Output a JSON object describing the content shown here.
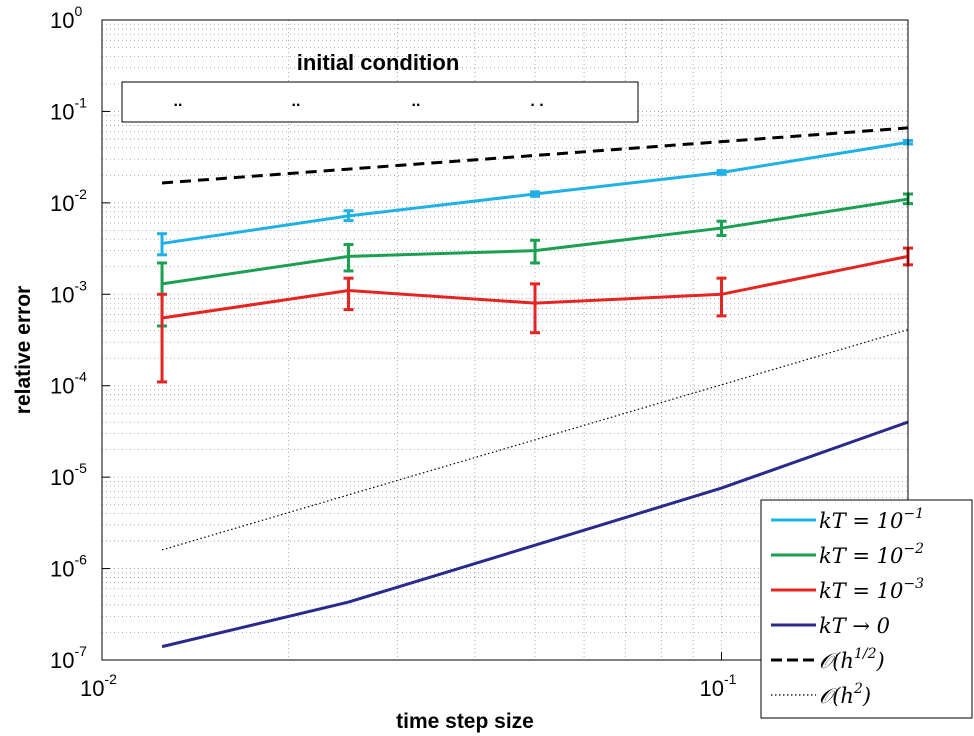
{
  "chart_data": {
    "type": "line",
    "xlabel": "time step size",
    "ylabel": "relative error",
    "xscale": "log",
    "yscale": "log",
    "xlim": [
      0.01,
      0.2
    ],
    "ylim": [
      1e-07,
      1
    ],
    "grid": true,
    "legend_position": "bottom-right",
    "x_ticks": [
      {
        "value": 0.01,
        "base": "10",
        "exp": "-2"
      },
      {
        "value": 0.1,
        "base": "10",
        "exp": "-1"
      }
    ],
    "y_ticks": [
      {
        "value": 1,
        "base": "10",
        "exp": "0"
      },
      {
        "value": 0.1,
        "base": "10",
        "exp": "-1"
      },
      {
        "value": 0.01,
        "base": "10",
        "exp": "-2"
      },
      {
        "value": 0.001,
        "base": "10",
        "exp": "-3"
      },
      {
        "value": 0.0001,
        "base": "10",
        "exp": "-4"
      },
      {
        "value": 1e-05,
        "base": "10",
        "exp": "-5"
      },
      {
        "value": 1e-06,
        "base": "10",
        "exp": "-6"
      },
      {
        "value": 1e-07,
        "base": "10",
        "exp": "-7"
      }
    ],
    "x": [
      0.0125,
      0.025,
      0.05,
      0.1,
      0.2
    ],
    "series": [
      {
        "name": "kT = 10^{-1}",
        "legend_main": "kT = 10",
        "legend_exp": "−1",
        "color": "#1fb1e6",
        "style": "solid",
        "values": [
          0.0036,
          0.0072,
          0.0125,
          0.0215,
          0.046
        ],
        "err_low": [
          0.0027,
          0.0064,
          0.0118,
          0.0205,
          0.044
        ],
        "err_high": [
          0.0046,
          0.0082,
          0.0132,
          0.0225,
          0.048
        ]
      },
      {
        "name": "kT = 10^{-2}",
        "legend_main": "kT = 10",
        "legend_exp": "−2",
        "color": "#1aa050",
        "style": "solid",
        "values": [
          0.0013,
          0.0026,
          0.003,
          0.0053,
          0.011
        ],
        "err_low": [
          0.00045,
          0.0018,
          0.0022,
          0.0044,
          0.0098
        ],
        "err_high": [
          0.0022,
          0.0035,
          0.0039,
          0.0063,
          0.0125
        ]
      },
      {
        "name": "kT = 10^{-3}",
        "legend_main": "kT = 10",
        "legend_exp": "−3",
        "color": "#e52424",
        "style": "solid",
        "values": [
          0.00055,
          0.0011,
          0.0008,
          0.001,
          0.0026
        ],
        "err_low": [
          0.00011,
          0.00068,
          0.00038,
          0.00058,
          0.0021
        ],
        "err_high": [
          0.001,
          0.0015,
          0.0013,
          0.0015,
          0.0032
        ]
      },
      {
        "name": "kT → 0",
        "legend_main": "kT → 0",
        "legend_exp": "",
        "color": "#2a2a8c",
        "style": "solid",
        "values": [
          1.4e-07,
          4.3e-07,
          1.8e-06,
          7.6e-06,
          4e-05
        ]
      },
      {
        "name": "O(h^{1/2})",
        "legend_main": "𝒪(h",
        "legend_exp": "1/2",
        "legend_close": ")",
        "color": "#000000",
        "style": "dashed",
        "values": [
          0.0165,
          0.0234,
          0.033,
          0.0467,
          0.066
        ]
      },
      {
        "name": "O(h^{2})",
        "legend_main": "𝒪(h",
        "legend_exp": "2",
        "legend_close": ")",
        "color": "#000000",
        "style": "dotted",
        "values": [
          1.6e-06,
          6.4e-06,
          2.56e-05,
          0.0001024,
          0.00041
        ]
      }
    ],
    "inset": {
      "title": "initial condition",
      "markers": [
        "..",
        "..",
        "..",
        ". ."
      ]
    }
  }
}
